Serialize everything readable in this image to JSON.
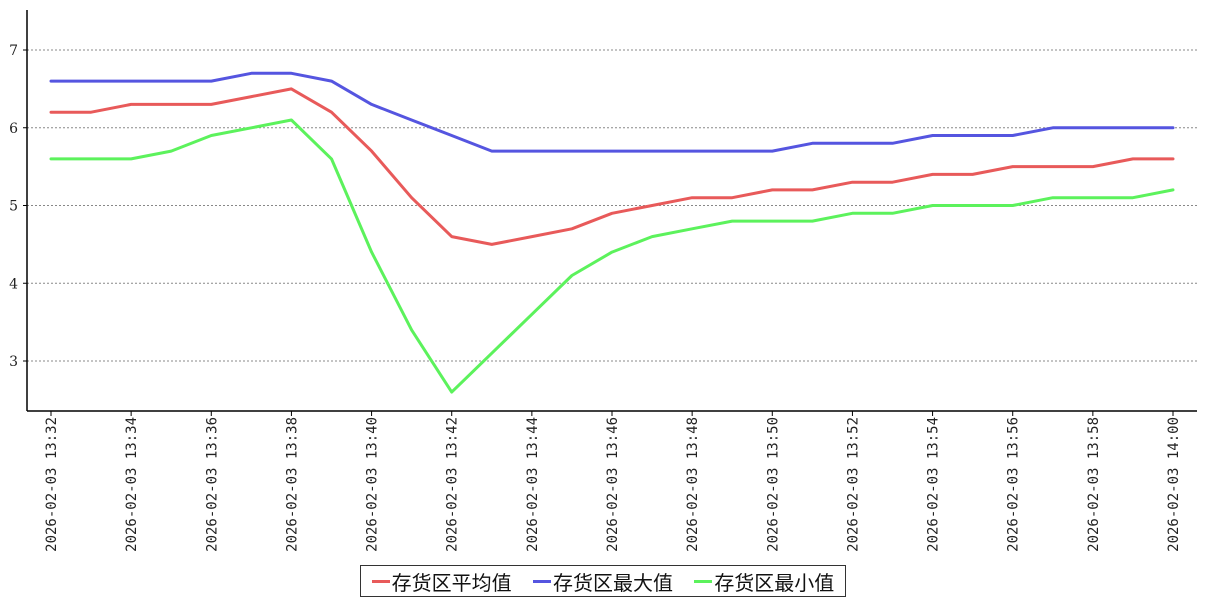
{
  "chart_data": {
    "type": "line",
    "x": [
      "2026-02-03 13:32",
      "2026-02-03 13:33",
      "2026-02-03 13:34",
      "2026-02-03 13:35",
      "2026-02-03 13:36",
      "2026-02-03 13:37",
      "2026-02-03 13:38",
      "2026-02-03 13:39",
      "2026-02-03 13:40",
      "2026-02-03 13:41",
      "2026-02-03 13:42",
      "2026-02-03 13:43",
      "2026-02-03 13:44",
      "2026-02-03 13:45",
      "2026-02-03 13:46",
      "2026-02-03 13:47",
      "2026-02-03 13:48",
      "2026-02-03 13:49",
      "2026-02-03 13:50",
      "2026-02-03 13:51",
      "2026-02-03 13:52",
      "2026-02-03 13:53",
      "2026-02-03 13:54",
      "2026-02-03 13:55",
      "2026-02-03 13:56",
      "2026-02-03 13:57",
      "2026-02-03 13:58",
      "2026-02-03 13:59",
      "2026-02-03 14:00"
    ],
    "x_tick_labels": [
      "2026-02-03 13:32",
      "2026-02-03 13:34",
      "2026-02-03 13:36",
      "2026-02-03 13:38",
      "2026-02-03 13:40",
      "2026-02-03 13:42",
      "2026-02-03 13:44",
      "2026-02-03 13:46",
      "2026-02-03 13:48",
      "2026-02-03 13:50",
      "2026-02-03 13:52",
      "2026-02-03 13:54",
      "2026-02-03 13:56",
      "2026-02-03 13:58",
      "2026-02-03 14:00"
    ],
    "y_ticks": [
      3,
      4,
      5,
      6,
      7
    ],
    "ylim": [
      2.4,
      7.5
    ],
    "grid": "horizontal dashed",
    "legend_position": "bottom",
    "series": [
      {
        "name": "存货区平均值",
        "color": "#e85a5a",
        "values": [
          6.2,
          6.2,
          6.3,
          6.3,
          6.3,
          6.4,
          6.5,
          6.2,
          5.7,
          5.1,
          4.6,
          4.5,
          4.6,
          4.7,
          4.9,
          5.0,
          5.1,
          5.1,
          5.2,
          5.2,
          5.3,
          5.3,
          5.4,
          5.4,
          5.5,
          5.5,
          5.5,
          5.6,
          5.6
        ]
      },
      {
        "name": "存货区最大值",
        "color": "#5555e0",
        "values": [
          6.6,
          6.6,
          6.6,
          6.6,
          6.6,
          6.7,
          6.7,
          6.6,
          6.3,
          6.1,
          5.9,
          5.7,
          5.7,
          5.7,
          5.7,
          5.7,
          5.7,
          5.7,
          5.7,
          5.8,
          5.8,
          5.8,
          5.9,
          5.9,
          5.9,
          6.0,
          6.0,
          6.0,
          6.0
        ]
      },
      {
        "name": "存货区最小值",
        "color": "#5cf25c",
        "values": [
          5.6,
          5.6,
          5.6,
          5.7,
          5.9,
          6.0,
          6.1,
          5.6,
          4.4,
          3.4,
          2.6,
          3.1,
          3.6,
          4.1,
          4.4,
          4.6,
          4.7,
          4.8,
          4.8,
          4.8,
          4.9,
          4.9,
          5.0,
          5.0,
          5.0,
          5.1,
          5.1,
          5.1,
          5.2
        ]
      }
    ]
  }
}
